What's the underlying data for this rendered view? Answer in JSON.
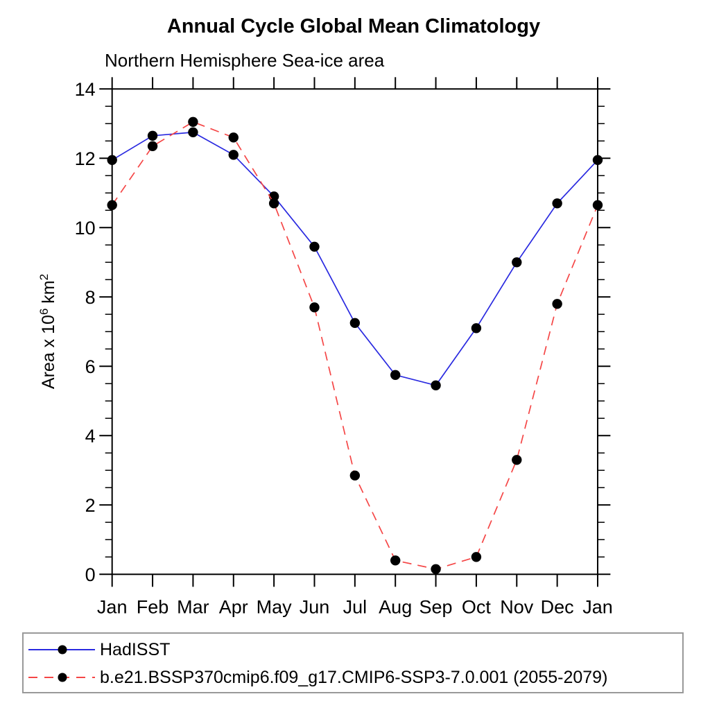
{
  "title": "Annual Cycle Global Mean Climatology",
  "subtitle": "Northern Hemisphere Sea-ice area",
  "chart_data": {
    "type": "line",
    "x_categories": [
      "Jan",
      "Feb",
      "Mar",
      "Apr",
      "May",
      "Jun",
      "Jul",
      "Aug",
      "Sep",
      "Oct",
      "Nov",
      "Dec",
      "Jan"
    ],
    "xlabel": "",
    "ylabel": "Area x 10^6 km^2",
    "ylabel_parts": [
      {
        "text": "Area x 10"
      },
      {
        "text": "6",
        "sup": true
      },
      {
        "text": " km"
      },
      {
        "text": "2",
        "sup": true
      }
    ],
    "ylim": [
      0,
      14
    ],
    "ytick_major": [
      0,
      2,
      4,
      6,
      8,
      10,
      12,
      14
    ],
    "ytick_minor_step": 0.5,
    "grid": false,
    "legend_position": "bottom-left-box",
    "marker_color": "#000000",
    "series": [
      {
        "name": "HadISST",
        "color": "#2929e0",
        "style": "solid",
        "marker": "circle",
        "values": [
          11.95,
          12.65,
          12.75,
          12.1,
          10.9,
          9.45,
          7.25,
          5.75,
          5.45,
          7.1,
          9.0,
          10.7,
          11.95
        ]
      },
      {
        "name": "b.e21.BSSP370cmip6.f09_g17.CMIP6-SSP3-7.0.001 (2055-2079)",
        "color": "#f54646",
        "style": "dashed",
        "marker": "circle",
        "values": [
          10.65,
          12.35,
          13.05,
          12.6,
          10.7,
          7.7,
          2.85,
          0.4,
          0.15,
          0.5,
          3.3,
          7.8,
          10.65
        ]
      }
    ]
  }
}
